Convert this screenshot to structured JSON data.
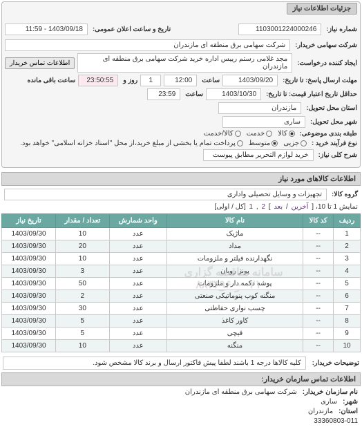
{
  "panel1": {
    "title": "جزئیات اطلاعات نیاز",
    "req_no_label": "شماره نیاز:",
    "req_no": "1103001224000246",
    "announce_label": "تاریخ و ساعت اعلان عمومی:",
    "announce": "1403/09/18 - 11:59",
    "buyer_label": "شرکت سهامی خریدار:",
    "buyer": "شرکت سهامی برق منطقه ای مازندران",
    "requester_label": "ایجاد کننده درخواست:",
    "requester": "مجد غلامی رستم رییس اداره خرید شرکت سهامی برق منطقه ای مازندران",
    "contact_btn": "اطلاعات تماس خریدار",
    "deadline_label": "مهلت ارسال پاسخ: تا تاریخ:",
    "deadline_date": "1403/09/20",
    "time_label": "ساعت",
    "deadline_time": "12:00",
    "remain_day": "1",
    "remain_day_label": "روز و",
    "remain_time": "23:50:55",
    "remain_time_label": "ساعت باقی مانده",
    "valid_label": "حداقل تاریخ اعتبار قیمت: تا تاریخ:",
    "valid_date": "1403/10/30",
    "valid_time": "23:59",
    "province_label": "استان محل تحویل:",
    "province": "مازندران",
    "city_label": "شهر محل تحویل:",
    "city": "ساری",
    "subject_group_label": "طبقه بندی موضوعی:",
    "subject_options": {
      "a": "کالا",
      "b": "خدمت",
      "c": "کالا/خدمت"
    },
    "subject_selected": "a",
    "buy_process_label": "نوع فرآیند خرید :",
    "buy_options": {
      "a": "جزیی",
      "b": "متوسط",
      "c": "پرداخت تمام یا بخشی از مبلغ خرید،از محل \"اسناد خزانه اسلامی\" خواهد بود."
    },
    "buy_selected": "b",
    "need_title_label": "شرح کلی نیاز:",
    "need_title": "خرید لوازم التحریر مطابق پیوست"
  },
  "section_items_title": "اطلاعات کالاهای مورد نیاز",
  "goods_group_label": "گروه کالا:",
  "goods_group": "تجهیزات و وسایل تحصیلی واداری",
  "pager": {
    "text_a": "نمایش 1 تا 10، [",
    "prev": "آخرین",
    "sep": "/",
    "next": "بعد",
    "bracket": "]",
    "p2": "2",
    "comma": ",",
    "p1": "1",
    "tail": "[کل / اولی]"
  },
  "table": {
    "headers": [
      "ردیف",
      "کد کالا",
      "نام کالا",
      "واحد شمارش",
      "تعداد / مقدار",
      "تاریخ نیاز"
    ],
    "rows": [
      [
        "1",
        "--",
        "ماژیک",
        "عدد",
        "10",
        "1403/09/30"
      ],
      [
        "2",
        "--",
        "مداد",
        "عدد",
        "20",
        "1403/09/30"
      ],
      [
        "3",
        "--",
        "نگهدارنده فیلتر و ملزومات",
        "عدد",
        "10",
        "1403/09/30"
      ],
      [
        "4",
        "--",
        "پونز روبان",
        "عدد",
        "3",
        "1403/09/30"
      ],
      [
        "5",
        "--",
        "پوشه دکمه دار و ملزومات",
        "عدد",
        "50",
        "1403/09/30"
      ],
      [
        "6",
        "--",
        "منگنه کوب پنوماتیکی صنعتی",
        "عدد",
        "2",
        "1403/09/30"
      ],
      [
        "7",
        "--",
        "چسب نواری حفاظتی",
        "عدد",
        "30",
        "1403/09/30"
      ],
      [
        "8",
        "--",
        "کاور کاغذ",
        "عدد",
        "5",
        "1403/09/30"
      ],
      [
        "9",
        "--",
        "قیچی",
        "عدد",
        "5",
        "1403/09/30"
      ],
      [
        "10",
        "--",
        "منگنه",
        "عدد",
        "10",
        "1403/09/30"
      ]
    ],
    "watermark_a": "سامانه مناقصه گزاری آموندی",
    "watermark_b": "۰۲۱–۸۸۳۴۹۶۰"
  },
  "notes_label": "توضیحات خریدار:",
  "notes": "کلیه کالاها درجه 1 باشند لطفا پیش فاکتور ارسال و برند کالا مشخص شود.",
  "org_section_title": "اطلاعات تماس سازمان خریدار:",
  "org": {
    "name_label": "نام سازمان خریدار:",
    "name": "شرکت سهامی برق منطقه ای مازندران",
    "city_label": "شهر:",
    "city": "ساری",
    "province_label": "استان:",
    "province": "مازندران",
    "phone": "33360803-011"
  }
}
